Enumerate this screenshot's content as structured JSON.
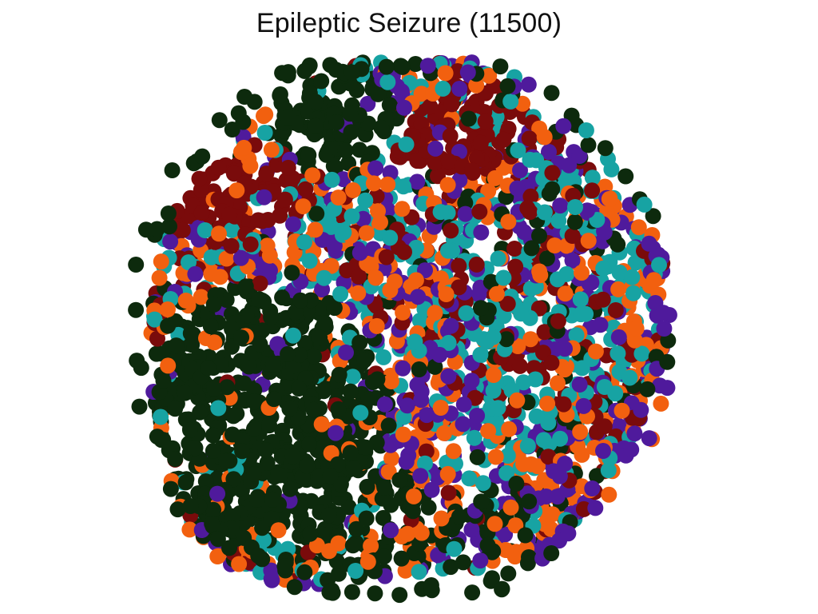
{
  "chart_data": {
    "type": "scatter",
    "title": "Epileptic Seizure (11500)",
    "xlabel": "",
    "ylabel": "",
    "axes_visible": false,
    "grid": false,
    "legend": "none",
    "marker": "filled-circle",
    "colors": {
      "class_dark_green": "#0d2a0d",
      "class_dark_red": "#7a0b0b",
      "class_purple": "#4f1a9c",
      "class_orange": "#f2600f",
      "class_teal": "#17a3a3"
    },
    "point_count": 11500,
    "point_count_drawn": 2600,
    "series": [
      {
        "color": "#0d2a0d",
        "region": "bottom-left, bottom and top-center lobe, outer rim"
      },
      {
        "color": "#7a0b0b",
        "region": "upper-left and upper-right bands, scattered center"
      },
      {
        "color": "#4f1a9c",
        "region": "scattered throughout, denser toward right and lower edge"
      },
      {
        "color": "#f2600f",
        "region": "scattered throughout center and lower band"
      },
      {
        "color": "#17a3a3",
        "region": "center and right interior"
      }
    ]
  }
}
